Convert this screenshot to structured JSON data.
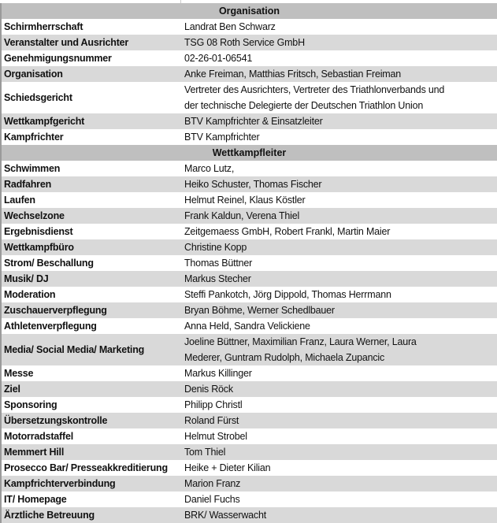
{
  "sections": [
    {
      "title": "Organisation",
      "rows": [
        {
          "label": "Schirmherrschaft",
          "value": [
            "Landrat Ben Schwarz"
          ]
        },
        {
          "label": "Veranstalter und Ausrichter",
          "value": [
            "TSG 08 Roth Service GmbH"
          ]
        },
        {
          "label": "Genehmigungsnummer",
          "value": [
            "02-26-01-06541"
          ]
        },
        {
          "label": "Organisation",
          "value": [
            "Anke Freiman, Matthias Fritsch, Sebastian Freiman"
          ]
        },
        {
          "label": "Schiedsgericht",
          "value": [
            "Vertreter des Ausrichters, Vertreter des Triathlonverbands und",
            "der technische Delegierte der Deutschen Triathlon Union"
          ]
        },
        {
          "label": "Wettkampfgericht",
          "value": [
            "BTV Kampfrichter & Einsatzleiter"
          ]
        },
        {
          "label": "Kampfrichter",
          "value": [
            "BTV Kampfrichter"
          ]
        }
      ]
    },
    {
      "title": "Wettkampfleiter",
      "rows": [
        {
          "label": "Schwimmen",
          "value": [
            "Marco Lutz,"
          ]
        },
        {
          "label": "Radfahren",
          "value": [
            "Heiko Schuster, Thomas Fischer"
          ]
        },
        {
          "label": "Laufen",
          "value": [
            "Helmut Reinel, Klaus Köstler"
          ]
        },
        {
          "label": "Wechselzone",
          "value": [
            "Frank Kaldun, Verena Thiel"
          ]
        },
        {
          "label": "Ergebnisdienst",
          "value": [
            "Zeitgemaess GmbH, Robert Frankl, Martin Maier"
          ]
        },
        {
          "label": "Wettkampfbüro",
          "value": [
            "Christine Kopp"
          ]
        },
        {
          "label": "Strom/ Beschallung",
          "value": [
            "Thomas Büttner"
          ]
        },
        {
          "label": "Musik/ DJ",
          "value": [
            "Markus Stecher"
          ]
        },
        {
          "label": "Moderation",
          "value": [
            "Steffi Pankotch, Jörg Dippold, Thomas Herrmann"
          ]
        },
        {
          "label": "Zuschauerverpflegung",
          "value": [
            "Bryan Böhme, Werner Schedlbauer"
          ]
        },
        {
          "label": "Athletenverpflegung",
          "value": [
            "Anna Held, Sandra Velickiene"
          ]
        },
        {
          "label": "Media/ Social Media/ Marketing",
          "value": [
            "Joeline Büttner, Maximilian Franz, Laura Werner, Laura",
            "Mederer, Guntram Rudolph, Michaela Zupancic"
          ]
        },
        {
          "label": "Messe",
          "value": [
            "Markus Killinger"
          ]
        },
        {
          "label": "Ziel",
          "value": [
            "Denis Röck"
          ]
        },
        {
          "label": "Sponsoring",
          "value": [
            "Philipp Christl"
          ]
        },
        {
          "label": "Übersetzungskontrolle",
          "value": [
            "Roland Fürst"
          ]
        },
        {
          "label": "Motorradstaffel",
          "value": [
            "Helmut Strobel"
          ]
        },
        {
          "label": "Memmert Hill",
          "value": [
            "Tom Thiel"
          ]
        },
        {
          "label": "Prosecco Bar/ Presseakkreditierung",
          "value": [
            "Heike + Dieter Kilian"
          ]
        },
        {
          "label": "Kampfrichterverbindung",
          "value": [
            "Marion Franz"
          ]
        },
        {
          "label": "IT/ Homepage",
          "value": [
            "Daniel Fuchs"
          ]
        },
        {
          "label": "Ärztliche Betreuung",
          "value": [
            "BRK/ Wasserwacht"
          ]
        }
      ]
    }
  ],
  "colors": {
    "header": "#bfbfbf",
    "stripe": "#d9d9d9"
  }
}
